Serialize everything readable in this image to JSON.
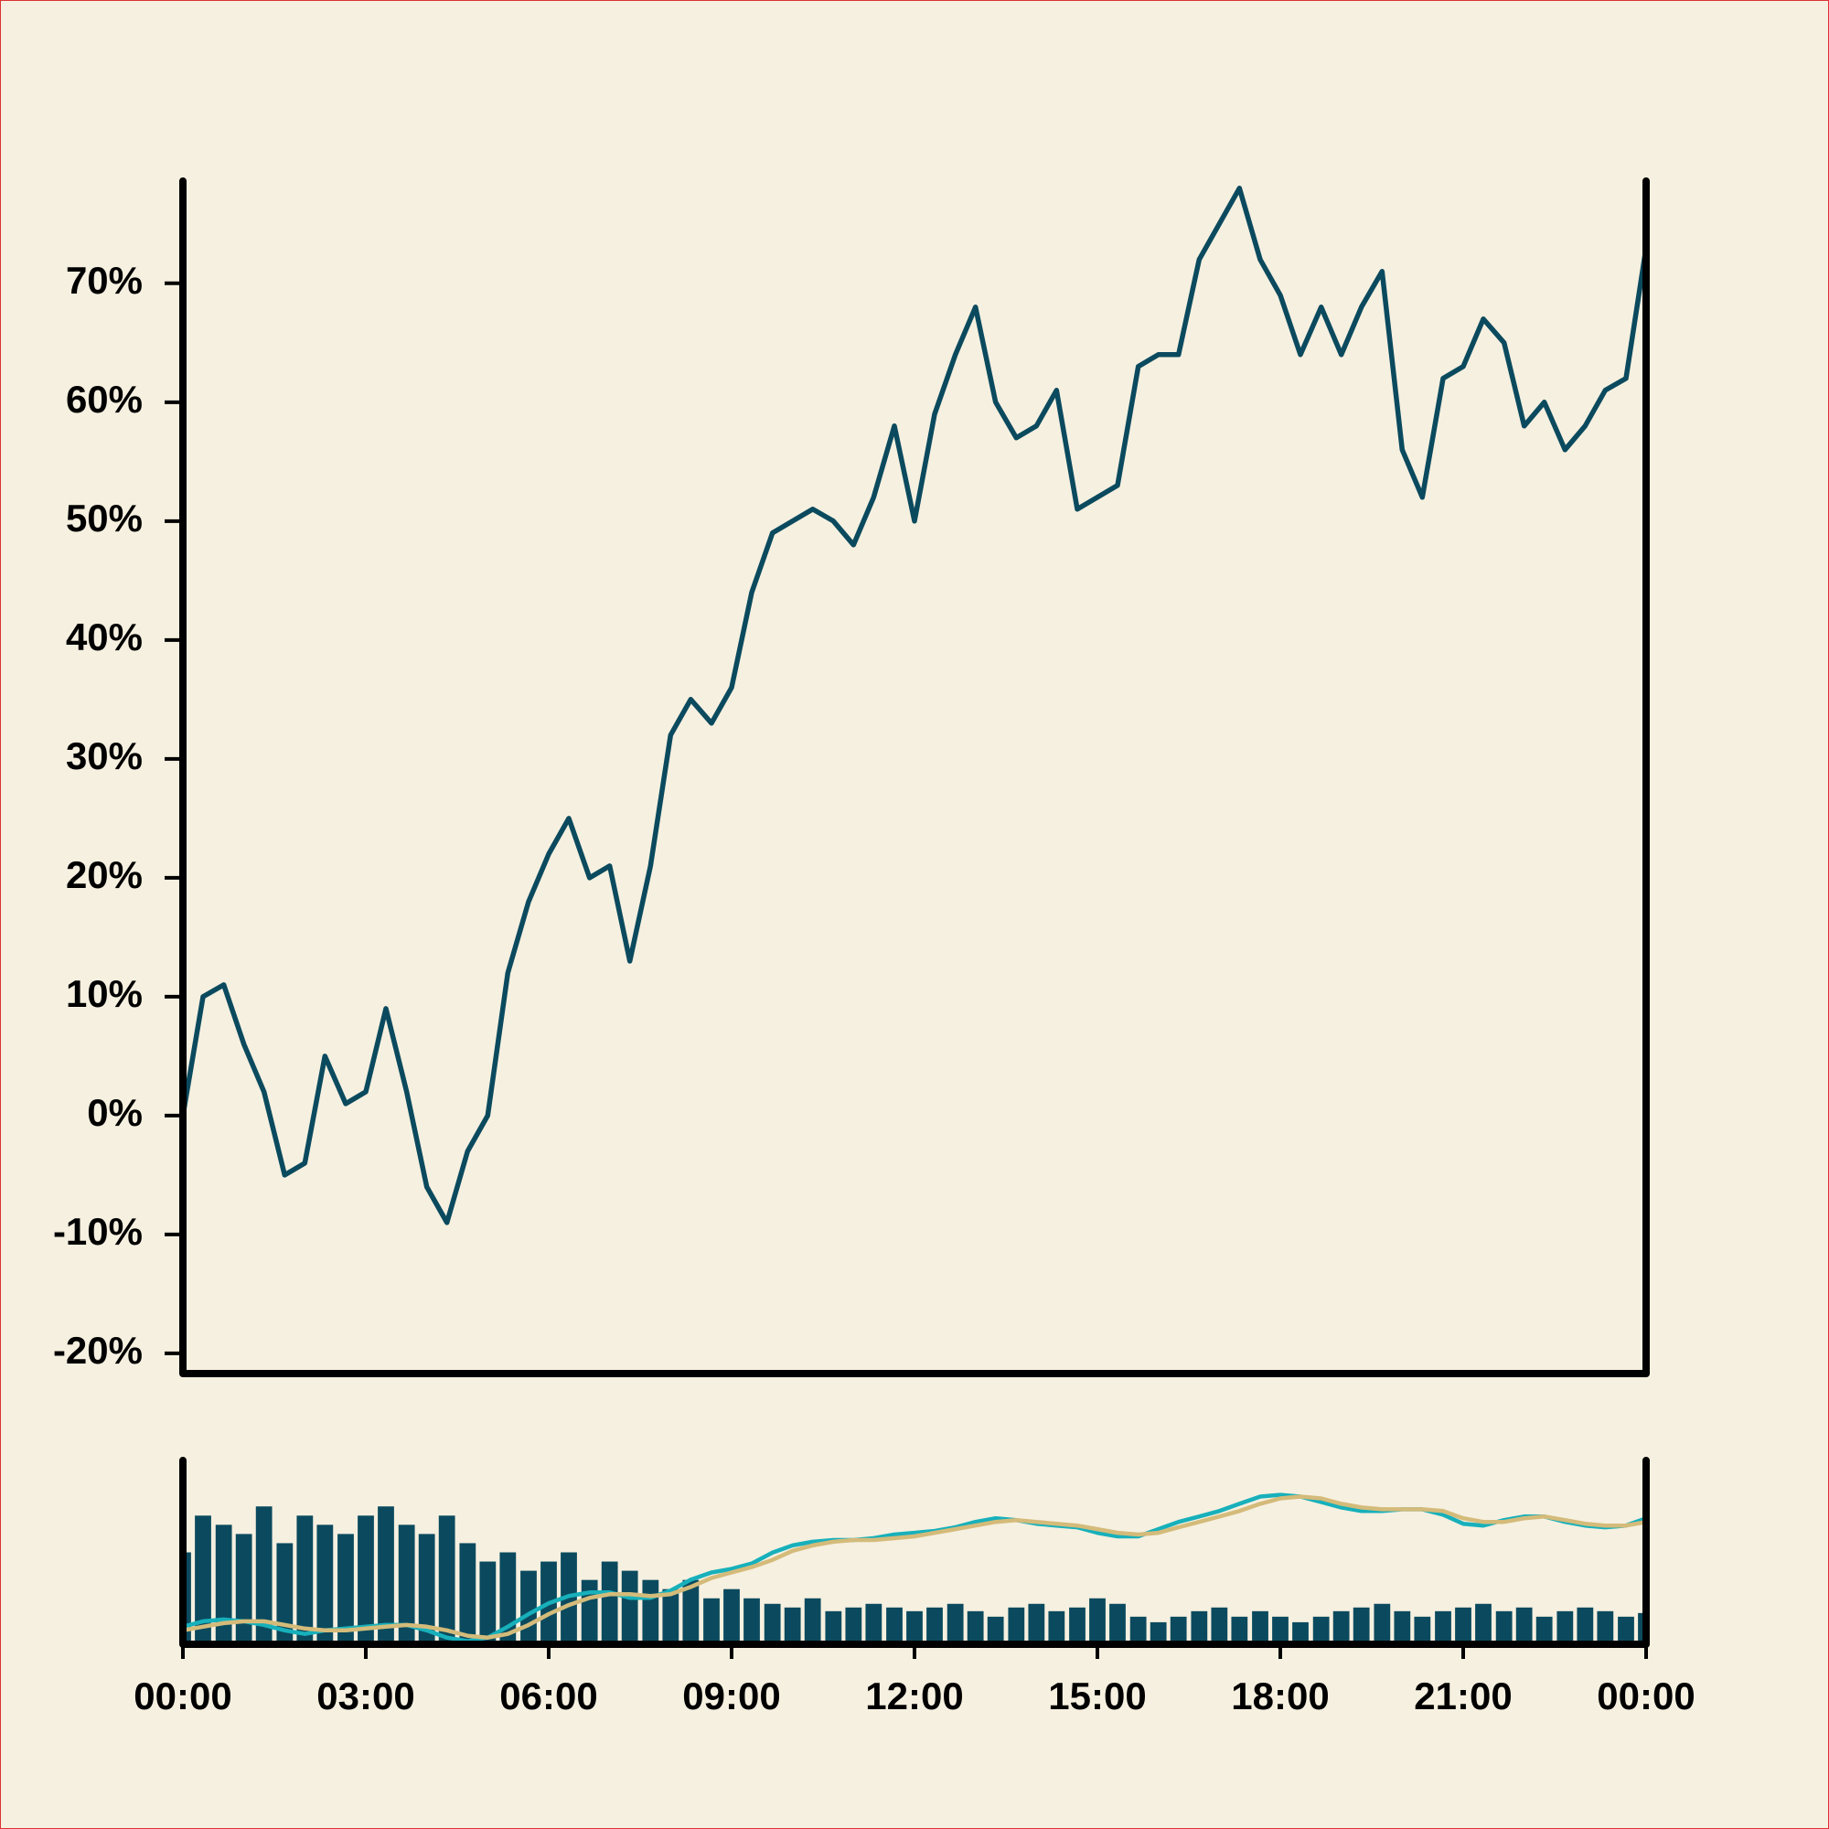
{
  "chart_data": [
    {
      "type": "line",
      "x": [
        0,
        0.33,
        0.67,
        1,
        1.33,
        1.67,
        2,
        2.33,
        2.67,
        3,
        3.33,
        3.67,
        4,
        4.33,
        4.67,
        5,
        5.33,
        5.67,
        6,
        6.33,
        6.67,
        7,
        7.33,
        7.67,
        8,
        8.33,
        8.67,
        9,
        9.33,
        9.67,
        10,
        10.33,
        10.67,
        11,
        11.33,
        11.67,
        12,
        12.33,
        12.67,
        13,
        13.33,
        13.67,
        14,
        14.33,
        14.67,
        15,
        15.33,
        15.67,
        16,
        16.33,
        16.67,
        17,
        17.33,
        17.67,
        18,
        18.33,
        18.67,
        19,
        19.33,
        19.67,
        20,
        20.33,
        20.67,
        21,
        21.33,
        21.67,
        22,
        22.33,
        22.67,
        23,
        23.33,
        23.67,
        24
      ],
      "values": [
        0,
        10,
        11,
        6,
        2,
        -5,
        -4,
        5,
        1,
        2,
        9,
        2,
        -6,
        -9,
        -3,
        0,
        12,
        18,
        22,
        25,
        20,
        21,
        13,
        21,
        32,
        35,
        33,
        36,
        44,
        49,
        50,
        51,
        50,
        48,
        52,
        58,
        50,
        59,
        64,
        68,
        60,
        57,
        58,
        61,
        51,
        52,
        53,
        63,
        64,
        64,
        72,
        75,
        78,
        72,
        69,
        64,
        68,
        64,
        68,
        71,
        56,
        52,
        62,
        63,
        67,
        65,
        58,
        60,
        56,
        58,
        61,
        62,
        73
      ],
      "color": "#0b4a5e",
      "xlim": [
        0,
        24
      ],
      "ylim": [
        -21.7,
        78.6
      ],
      "yticks": [
        {
          "value": -20,
          "label": "-20%"
        },
        {
          "value": -10,
          "label": "-10%"
        },
        {
          "value": 0,
          "label": "0%"
        },
        {
          "value": 10,
          "label": "10%"
        },
        {
          "value": 20,
          "label": "20%"
        },
        {
          "value": 30,
          "label": "30%"
        },
        {
          "value": 40,
          "label": "40%"
        },
        {
          "value": 50,
          "label": "50%"
        },
        {
          "value": 60,
          "label": "60%"
        },
        {
          "value": 70,
          "label": "70%"
        }
      ]
    },
    {
      "type": "bar",
      "x": [
        0,
        0.33,
        0.67,
        1,
        1.33,
        1.67,
        2,
        2.33,
        2.67,
        3,
        3.33,
        3.67,
        4,
        4.33,
        4.67,
        5,
        5.33,
        5.67,
        6,
        6.33,
        6.67,
        7,
        7.33,
        7.67,
        8,
        8.33,
        8.67,
        9,
        9.33,
        9.67,
        10,
        10.33,
        10.67,
        11,
        11.33,
        11.67,
        12,
        12.33,
        12.67,
        13,
        13.33,
        13.67,
        14,
        14.33,
        14.67,
        15,
        15.33,
        15.67,
        16,
        16.33,
        16.67,
        17,
        17.33,
        17.67,
        18,
        18.33,
        18.67,
        19,
        19.33,
        19.67,
        20,
        20.33,
        20.67,
        21,
        21.33,
        21.67,
        22,
        22.33,
        22.67,
        23,
        23.33,
        23.67,
        24
      ],
      "series": [
        {
          "type": "bar",
          "color": "#0b4a5e",
          "values": [
            50,
            70,
            65,
            60,
            75,
            55,
            70,
            65,
            60,
            70,
            75,
            65,
            60,
            70,
            55,
            45,
            50,
            40,
            45,
            50,
            35,
            45,
            40,
            35,
            30,
            35,
            25,
            30,
            25,
            22,
            20,
            25,
            18,
            20,
            22,
            20,
            18,
            20,
            22,
            18,
            15,
            20,
            22,
            18,
            20,
            25,
            22,
            15,
            12,
            15,
            18,
            20,
            15,
            18,
            15,
            12,
            15,
            18,
            20,
            22,
            18,
            15,
            18,
            20,
            22,
            18,
            20,
            15,
            18,
            20,
            18,
            15,
            17
          ]
        },
        {
          "type": "line",
          "axis": "y2",
          "color": "#17b0bb",
          "values": [
            2,
            5,
            6,
            5,
            3,
            0,
            -2,
            0,
            1,
            2,
            3,
            3,
            0,
            -4,
            -6,
            -4,
            2,
            9,
            15,
            19,
            21,
            21,
            18,
            18,
            22,
            28,
            32,
            34,
            37,
            43,
            47,
            49,
            50,
            50,
            51,
            53,
            54,
            55,
            57,
            60,
            62,
            61,
            59,
            58,
            57,
            54,
            52,
            52,
            56,
            60,
            63,
            66,
            70,
            74,
            75,
            74,
            71,
            68,
            66,
            66,
            67,
            67,
            64,
            59,
            58,
            61,
            63,
            63,
            60,
            58,
            57,
            58,
            62
          ]
        },
        {
          "type": "line",
          "axis": "y2",
          "color": "#d4bb7a",
          "values": [
            0,
            2,
            4,
            5,
            5,
            3,
            1,
            0,
            0,
            1,
            2,
            3,
            2,
            0,
            -3,
            -4,
            -2,
            3,
            9,
            14,
            18,
            20,
            20,
            19,
            20,
            24,
            29,
            32,
            35,
            39,
            44,
            47,
            49,
            50,
            50,
            51,
            52,
            54,
            56,
            58,
            60,
            61,
            60,
            59,
            58,
            56,
            54,
            53,
            54,
            57,
            60,
            63,
            66,
            70,
            73,
            74,
            73,
            70,
            68,
            67,
            67,
            67,
            66,
            62,
            60,
            60,
            62,
            63,
            61,
            59,
            58,
            58,
            60
          ]
        }
      ],
      "xlim": [
        0,
        24
      ],
      "ylim": [
        0,
        100
      ],
      "y2lim": [
        -7.7,
        94
      ],
      "xticks": [
        {
          "value": 0,
          "label": "00:00"
        },
        {
          "value": 3,
          "label": "03:00"
        },
        {
          "value": 6,
          "label": "06:00"
        },
        {
          "value": 9,
          "label": "09:00"
        },
        {
          "value": 12,
          "label": "12:00"
        },
        {
          "value": 15,
          "label": "15:00"
        },
        {
          "value": 18,
          "label": "18:00"
        },
        {
          "value": 21,
          "label": "21:00"
        },
        {
          "value": 24,
          "label": "00:00"
        }
      ]
    }
  ]
}
